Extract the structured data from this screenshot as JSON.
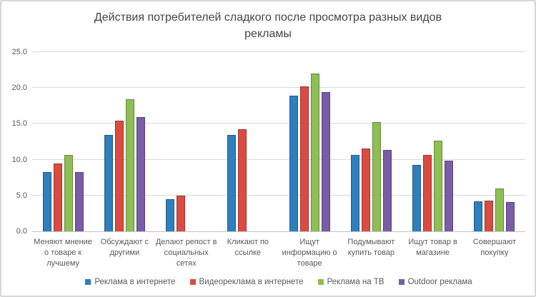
{
  "header": {
    "line1": "Действия потребителей сладкого после просмотра разных видов",
    "line2": "рекламы"
  },
  "chart_data": {
    "type": "bar",
    "title": "Действия потребителей сладкого после просмотра разных видов рекламы",
    "categories": [
      "Меняют мнение о товаре к лучшему",
      "Обсуждают с другими",
      "Делают репост в социальных сетях",
      "Кликают по ссылке",
      "Ищут информацию о товаре",
      "Подумывают купить товар",
      "Ищут товар в магазине",
      "Совершают покупку"
    ],
    "series": [
      {
        "name": "Реклама в интернете",
        "color": "#2e7fbd",
        "values": [
          8.3,
          13.4,
          4.5,
          13.4,
          18.9,
          10.7,
          9.3,
          4.2
        ]
      },
      {
        "name": "Видеореклама в интернете",
        "color": "#db4b41",
        "values": [
          9.5,
          15.4,
          5.0,
          14.2,
          20.2,
          11.6,
          10.7,
          4.3
        ]
      },
      {
        "name": "Реклама на ТВ",
        "color": "#8ebe55",
        "values": [
          10.7,
          18.4,
          0,
          0,
          22.0,
          15.2,
          12.7,
          6.0
        ]
      },
      {
        "name": "Outdoor реклама",
        "color": "#7a5da6",
        "values": [
          8.3,
          15.9,
          0,
          0,
          19.4,
          11.4,
          9.9,
          4.1
        ]
      }
    ],
    "ylim": [
      0,
      25
    ],
    "ytick_values": [
      0,
      5,
      10,
      15,
      20,
      25
    ],
    "ytick_labels": [
      "0.0",
      "5.0",
      "10.0",
      "15.0",
      "20.0",
      "25.0"
    ],
    "grid": true,
    "legend_position": "bottom"
  }
}
